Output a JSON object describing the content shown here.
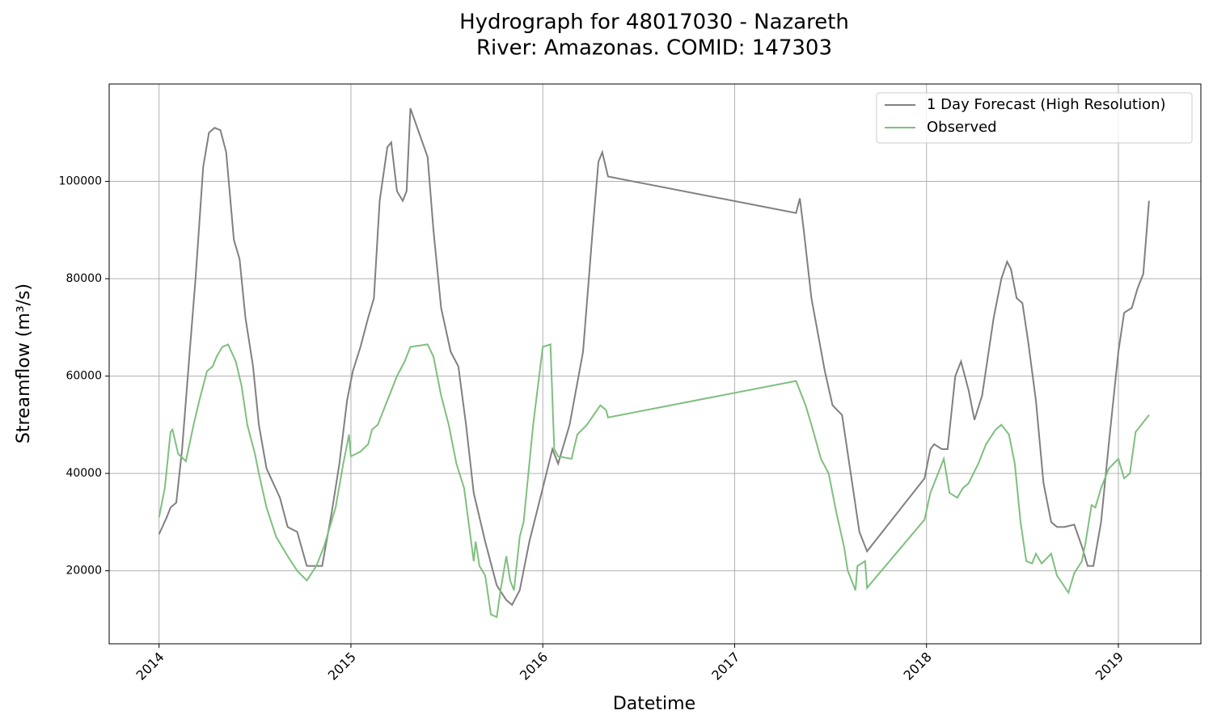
{
  "chart_data": {
    "type": "line",
    "title": "Hydrograph for 48017030 - Nazareth",
    "subtitle": "River: Amazonas. COMID: 147303",
    "x_label": "Datetime",
    "y_label": "Streamflow (m³/s)",
    "xlim": [
      2013.74,
      2019.43
    ],
    "ylim": [
      5000,
      120000
    ],
    "xticks": [
      2014,
      2015,
      2016,
      2017,
      2018,
      2019
    ],
    "yticks": [
      20000,
      40000,
      60000,
      80000,
      100000
    ],
    "grid": true,
    "legend": "upper right",
    "series": [
      {
        "name": "1 Day Forecast (High Resolution)",
        "color": "#808080",
        "x": [
          2014.0,
          2014.04,
          2014.06,
          2014.09,
          2014.12,
          2014.16,
          2014.19,
          2014.23,
          2014.26,
          2014.29,
          2014.32,
          2014.35,
          2014.39,
          2014.42,
          2014.45,
          2014.49,
          2014.52,
          2014.56,
          2014.63,
          2014.67,
          2014.72,
          2014.77,
          2014.82,
          2014.85,
          2014.9,
          2014.94,
          2014.98,
          2015.01,
          2015.05,
          2015.09,
          2015.12,
          2015.15,
          2015.19,
          2015.21,
          2015.24,
          2015.27,
          2015.29,
          2015.31,
          2015.4,
          2015.43,
          2015.47,
          2015.52,
          2015.56,
          2015.6,
          2015.64,
          2015.7,
          2015.76,
          2015.81,
          2015.84,
          2015.88,
          2015.93,
          2016.0,
          2016.05,
          2016.08,
          2016.14,
          2016.21,
          2016.26,
          2016.29,
          2016.31,
          2016.34,
          2017.32,
          2017.34,
          2017.36,
          2017.4,
          2017.47,
          2017.51,
          2017.56,
          2017.62,
          2017.65,
          2017.69,
          2017.99,
          2018.02,
          2018.04,
          2018.08,
          2018.11,
          2018.15,
          2018.18,
          2018.22,
          2018.25,
          2018.29,
          2018.35,
          2018.39,
          2018.42,
          2018.44,
          2018.47,
          2018.5,
          2018.53,
          2018.57,
          2018.61,
          2018.65,
          2018.68,
          2018.72,
          2018.77,
          2018.81,
          2018.84,
          2018.87,
          2018.91,
          2018.95,
          2019.0,
          2019.03,
          2019.07,
          2019.1,
          2019.13,
          2019.16
        ],
        "values": [
          27500,
          31000,
          33000,
          34000,
          45000,
          65000,
          80000,
          103000,
          110000,
          111000,
          110500,
          106000,
          88000,
          84000,
          72000,
          62000,
          50000,
          41000,
          35000,
          29000,
          28000,
          21000,
          21000,
          21000,
          32000,
          42000,
          55000,
          61000,
          66000,
          72000,
          76000,
          96000,
          107000,
          108000,
          98000,
          96000,
          98000,
          115000,
          105000,
          90000,
          74000,
          65000,
          62000,
          50000,
          36000,
          26000,
          17000,
          14000,
          13000,
          16000,
          26000,
          37000,
          45000,
          42000,
          50000,
          65000,
          90000,
          104000,
          106000,
          101000,
          93500,
          96500,
          90000,
          76000,
          61000,
          54000,
          52000,
          36000,
          28000,
          24000,
          39000,
          45000,
          46000,
          45000,
          45000,
          60000,
          63000,
          57000,
          51000,
          56000,
          72000,
          80000,
          83500,
          82000,
          76000,
          75000,
          67000,
          55000,
          38000,
          30000,
          29000,
          29000,
          29500,
          25000,
          21000,
          21000,
          30000,
          46000,
          65000,
          73000,
          74000,
          78000,
          81000,
          96000
        ]
      },
      {
        "name": "Observed",
        "color": "#7fbf7f",
        "x": [
          2014.0,
          2014.03,
          2014.06,
          2014.07,
          2014.1,
          2014.14,
          2014.18,
          2014.21,
          2014.25,
          2014.28,
          2014.3,
          2014.33,
          2014.36,
          2014.4,
          2014.43,
          2014.46,
          2014.5,
          2014.52,
          2014.56,
          2014.61,
          2014.67,
          2014.72,
          2014.77,
          2014.82,
          2014.86,
          2014.92,
          2014.96,
          2014.99,
          2015.0,
          2015.05,
          2015.09,
          2015.11,
          2015.14,
          2015.19,
          2015.24,
          2015.28,
          2015.31,
          2015.4,
          2015.43,
          2015.47,
          2015.51,
          2015.55,
          2015.59,
          2015.62,
          2015.64,
          2015.65,
          2015.67,
          2015.7,
          2015.73,
          2015.76,
          2015.78,
          2015.81,
          2015.83,
          2015.85,
          2015.88,
          2015.9,
          2015.95,
          2016.0,
          2016.04,
          2016.06,
          2016.08,
          2016.15,
          2016.18,
          2016.23,
          2016.3,
          2016.33,
          2016.34,
          2017.32,
          2017.34,
          2017.37,
          2017.4,
          2017.45,
          2017.49,
          2017.53,
          2017.57,
          2017.59,
          2017.63,
          2017.64,
          2017.68,
          2017.69,
          2017.99,
          2018.02,
          2018.06,
          2018.09,
          2018.12,
          2018.16,
          2018.19,
          2018.22,
          2018.27,
          2018.31,
          2018.36,
          2018.39,
          2018.43,
          2018.46,
          2018.49,
          2018.52,
          2018.55,
          2018.57,
          2018.6,
          2018.65,
          2018.68,
          2018.74,
          2018.77,
          2018.81,
          2018.83,
          2018.86,
          2018.88,
          2018.91,
          2018.95,
          2019.0,
          2019.03,
          2019.06,
          2019.09,
          2019.13,
          2019.16
        ],
        "values": [
          31000,
          37000,
          48500,
          49000,
          44000,
          42500,
          50000,
          55000,
          61000,
          62000,
          64000,
          66000,
          66500,
          63000,
          58000,
          50000,
          44000,
          40000,
          33000,
          27000,
          23000,
          20000,
          18000,
          21000,
          25000,
          33000,
          42000,
          48000,
          43500,
          44500,
          46000,
          49000,
          50000,
          55000,
          60000,
          63000,
          66000,
          66500,
          64000,
          56000,
          50000,
          42000,
          37000,
          28000,
          22000,
          26000,
          21000,
          19000,
          11000,
          10500,
          16000,
          23000,
          18000,
          16000,
          27000,
          30000,
          50000,
          66000,
          66500,
          45000,
          43500,
          43000,
          48000,
          50000,
          54000,
          53000,
          51500,
          59000,
          57000,
          54000,
          50000,
          43000,
          40000,
          32000,
          25000,
          20000,
          16000,
          21000,
          22000,
          16500,
          30500,
          36000,
          40000,
          43000,
          36000,
          35000,
          37000,
          38000,
          42000,
          46000,
          49000,
          50000,
          48000,
          42000,
          30000,
          22000,
          21500,
          23500,
          21500,
          23500,
          19000,
          15500,
          19500,
          22000,
          26000,
          33500,
          33000,
          37000,
          41000,
          43000,
          39000,
          40000,
          48500,
          50500,
          52000
        ]
      }
    ]
  }
}
